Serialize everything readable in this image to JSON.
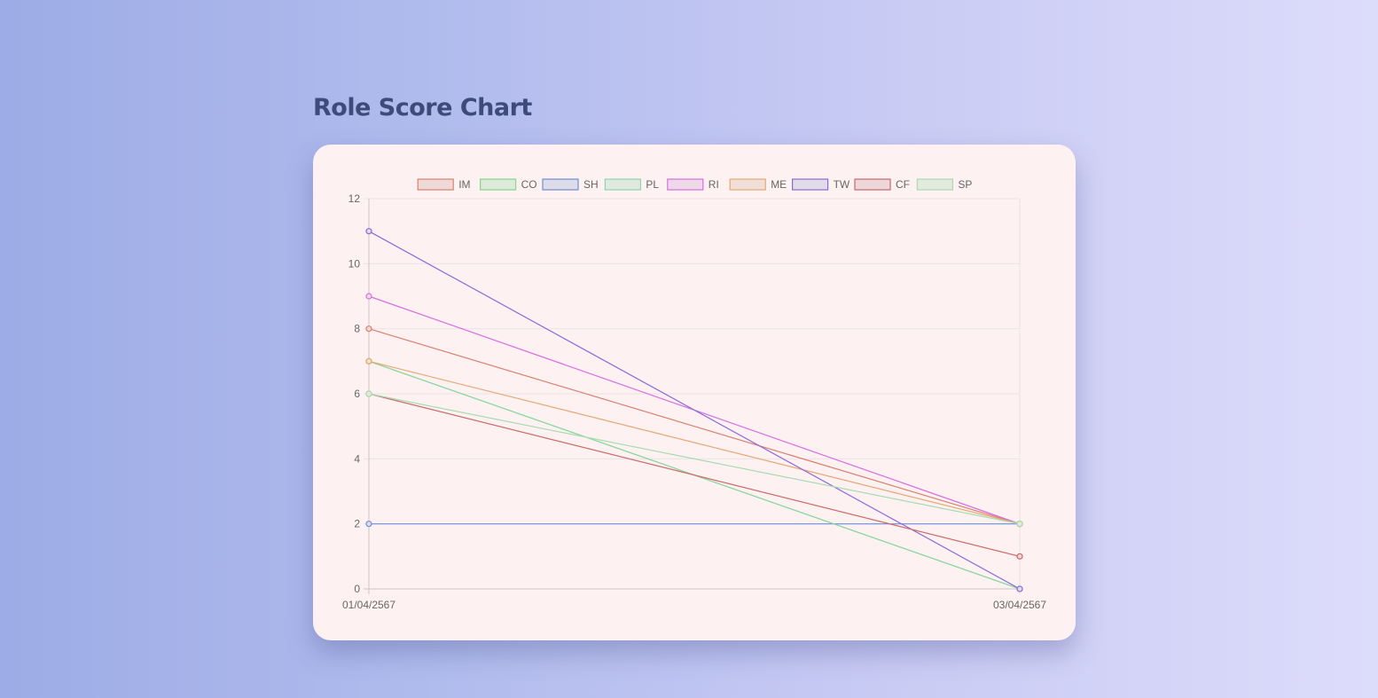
{
  "page": {
    "title": "Role Score Chart"
  },
  "chart_data": {
    "type": "line",
    "title": "",
    "xlabel": "",
    "ylabel": "",
    "categories": [
      "01/04/2567",
      "03/04/2567"
    ],
    "ylim": [
      0,
      12
    ],
    "yticks": [
      0,
      2,
      4,
      6,
      8,
      10,
      12
    ],
    "grid": true,
    "legend": "top",
    "series": [
      {
        "name": "IM",
        "values": [
          8,
          2
        ],
        "color": "#d9826f",
        "fill": "#eed9d9"
      },
      {
        "name": "CO",
        "values": [
          7,
          0
        ],
        "color": "#7fdc7f",
        "fill": "#dde9dd"
      },
      {
        "name": "SH",
        "values": [
          2,
          2
        ],
        "color": "#6f8fd8",
        "fill": "#dcdde8"
      },
      {
        "name": "PL",
        "values": [
          7,
          0
        ],
        "color": "#8fd6a6",
        "fill": "#dfe9e1"
      },
      {
        "name": "RI",
        "values": [
          9,
          2
        ],
        "color": "#d86ee0",
        "fill": "#eed8ea"
      },
      {
        "name": "ME",
        "values": [
          7,
          2
        ],
        "color": "#e6a870",
        "fill": "#f0dfd6"
      },
      {
        "name": "TW",
        "values": [
          11,
          0
        ],
        "color": "#8a6bd8",
        "fill": "#e2dbea"
      },
      {
        "name": "CF",
        "values": [
          6,
          1
        ],
        "color": "#c86a6a",
        "fill": "#ecd6d8"
      },
      {
        "name": "SP",
        "values": [
          6,
          2
        ],
        "color": "#a8dcb0",
        "fill": "#e3ebe0"
      }
    ]
  }
}
